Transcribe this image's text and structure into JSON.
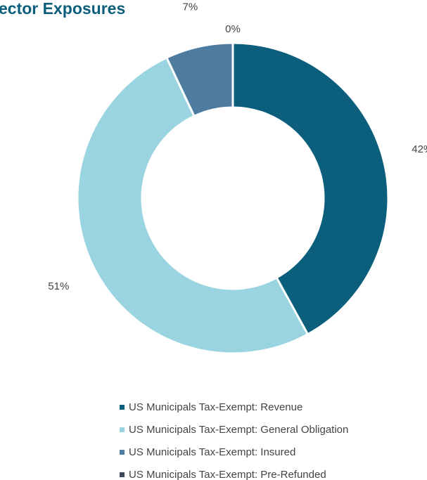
{
  "chart_data": {
    "type": "donut",
    "title": "ector Exposures",
    "categories": [
      "US Municipals Tax-Exempt: Revenue",
      "US Municipals Tax-Exempt: General Obligation",
      "US Municipals Tax-Exempt: Insured",
      "US Municipals Tax-Exempt: Pre-Refunded"
    ],
    "values": [
      42,
      51,
      7,
      0
    ],
    "value_labels": [
      "42%",
      "51%",
      "7%",
      "0%"
    ],
    "colors": [
      "#0b5f7c",
      "#9ad4e0",
      "#4e7ba0",
      "#3d4a5a"
    ]
  }
}
